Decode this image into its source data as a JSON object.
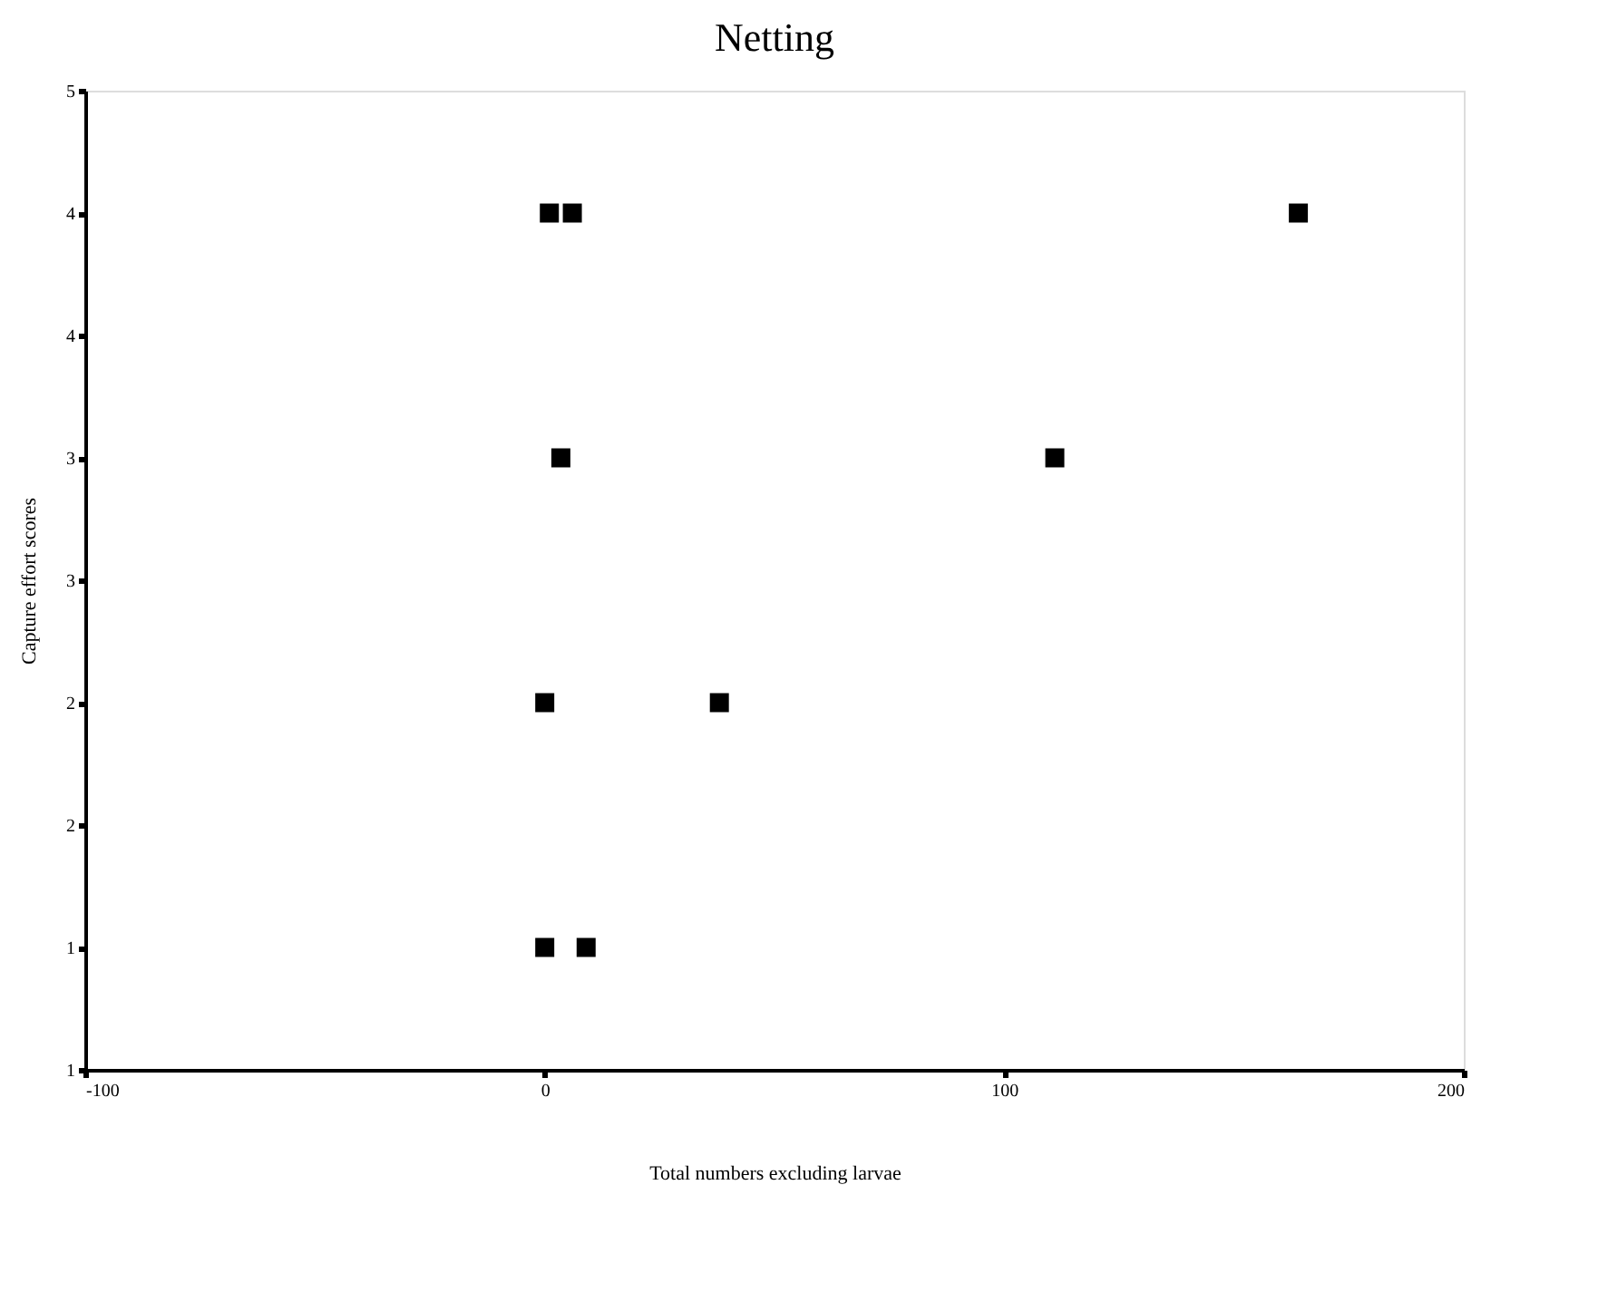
{
  "chart_data": {
    "type": "scatter",
    "title": "Netting",
    "xlabel": "Total numbers excluding larvae",
    "ylabel": "Capture effort scores",
    "x": [
      1,
      6,
      3.5,
      111,
      0,
      38,
      0,
      9,
      164
    ],
    "values": [
      4,
      4,
      3,
      3,
      2,
      2,
      1,
      1,
      4
    ],
    "color": "#000000",
    "marker": "square",
    "xlim": [
      -100,
      200
    ],
    "xticks": [
      -100,
      0,
      100,
      200
    ],
    "ylim": [
      0.5,
      4.5
    ],
    "yticks": [
      {
        "value": 0.5,
        "label": "1"
      },
      {
        "value": 1,
        "label": "1"
      },
      {
        "value": 1.5,
        "label": "2"
      },
      {
        "value": 2,
        "label": "2"
      },
      {
        "value": 2.5,
        "label": "3"
      },
      {
        "value": 3,
        "label": "3"
      },
      {
        "value": 3.5,
        "label": "4"
      },
      {
        "value": 4,
        "label": "4"
      },
      {
        "value": 4.5,
        "label": "5"
      }
    ],
    "grid": false
  }
}
